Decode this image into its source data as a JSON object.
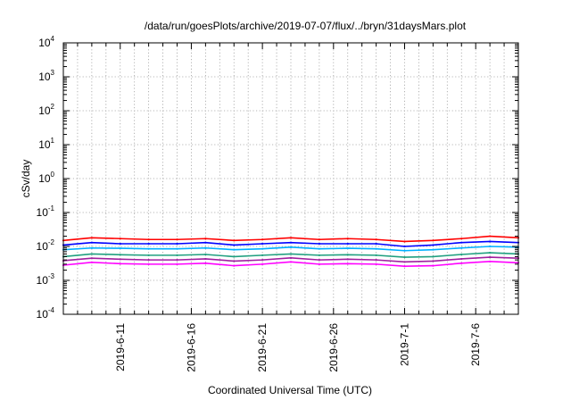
{
  "chart_data": {
    "type": "line",
    "title": "/data/run/goesPlots/archive/2019-07-07/flux/../bryn/31daysMars.plot",
    "xlabel": "Coordinated Universal Time (UTC)",
    "ylabel": "cSv/day",
    "y_scale": "log",
    "ylim": [
      0.0001,
      10000
    ],
    "y_ticks": [
      {
        "base": "10",
        "exp": "-4"
      },
      {
        "base": "10",
        "exp": "-3"
      },
      {
        "base": "10",
        "exp": "-2"
      },
      {
        "base": "10",
        "exp": "-1"
      },
      {
        "base": "10",
        "exp": "0"
      },
      {
        "base": "10",
        "exp": "1"
      },
      {
        "base": "10",
        "exp": "2"
      },
      {
        "base": "10",
        "exp": "3"
      },
      {
        "base": "10",
        "exp": "4"
      }
    ],
    "xlim": [
      "2019-06-07",
      "2019-07-09"
    ],
    "x_ticks": [
      "2019-6-11",
      "2019-6-16",
      "2019-6-21",
      "2019-6-26",
      "2019-7-1",
      "2019-7-6"
    ],
    "grid": true,
    "series": [
      {
        "color": "#ff0000",
        "x": [
          "2019-06-07",
          "2019-06-09",
          "2019-06-11",
          "2019-06-13",
          "2019-06-15",
          "2019-06-17",
          "2019-06-19",
          "2019-06-21",
          "2019-06-23",
          "2019-06-25",
          "2019-06-27",
          "2019-06-29",
          "2019-07-01",
          "2019-07-03",
          "2019-07-05",
          "2019-07-07",
          "2019-07-09"
        ],
        "values": [
          0.015,
          0.018,
          0.017,
          0.016,
          0.016,
          0.017,
          0.015,
          0.016,
          0.018,
          0.016,
          0.017,
          0.016,
          0.014,
          0.015,
          0.017,
          0.02,
          0.018
        ]
      },
      {
        "color": "#0000ff",
        "x": [
          "2019-06-07",
          "2019-06-09",
          "2019-06-11",
          "2019-06-13",
          "2019-06-15",
          "2019-06-17",
          "2019-06-19",
          "2019-06-21",
          "2019-06-23",
          "2019-06-25",
          "2019-06-27",
          "2019-06-29",
          "2019-07-01",
          "2019-07-03",
          "2019-07-05",
          "2019-07-07",
          "2019-07-09"
        ],
        "values": [
          0.011,
          0.013,
          0.012,
          0.012,
          0.012,
          0.013,
          0.011,
          0.012,
          0.013,
          0.012,
          0.012,
          0.012,
          0.01,
          0.011,
          0.013,
          0.014,
          0.013
        ]
      },
      {
        "color": "#00b0ff",
        "x": [
          "2019-06-07",
          "2019-06-09",
          "2019-06-11",
          "2019-06-13",
          "2019-06-15",
          "2019-06-17",
          "2019-06-19",
          "2019-06-21",
          "2019-06-23",
          "2019-06-25",
          "2019-06-27",
          "2019-06-29",
          "2019-07-01",
          "2019-07-03",
          "2019-07-05",
          "2019-07-07",
          "2019-07-09"
        ],
        "values": [
          0.008,
          0.009,
          0.0088,
          0.0085,
          0.0085,
          0.009,
          0.008,
          0.0085,
          0.0095,
          0.0085,
          0.0088,
          0.0085,
          0.0075,
          0.008,
          0.009,
          0.01,
          0.0095
        ]
      },
      {
        "color": "#20a080",
        "x": [
          "2019-06-07",
          "2019-06-09",
          "2019-06-11",
          "2019-06-13",
          "2019-06-15",
          "2019-06-17",
          "2019-06-19",
          "2019-06-21",
          "2019-06-23",
          "2019-06-25",
          "2019-06-27",
          "2019-06-29",
          "2019-07-01",
          "2019-07-03",
          "2019-07-05",
          "2019-07-07",
          "2019-07-09"
        ],
        "values": [
          0.005,
          0.006,
          0.0057,
          0.0055,
          0.0055,
          0.0058,
          0.005,
          0.0055,
          0.006,
          0.0055,
          0.0057,
          0.0055,
          0.0048,
          0.005,
          0.0058,
          0.0065,
          0.006
        ]
      },
      {
        "color": "#a020a0",
        "x": [
          "2019-06-07",
          "2019-06-09",
          "2019-06-11",
          "2019-06-13",
          "2019-06-15",
          "2019-06-17",
          "2019-06-19",
          "2019-06-21",
          "2019-06-23",
          "2019-06-25",
          "2019-06-27",
          "2019-06-29",
          "2019-07-01",
          "2019-07-03",
          "2019-07-05",
          "2019-07-07",
          "2019-07-09"
        ],
        "values": [
          0.0038,
          0.0045,
          0.0042,
          0.004,
          0.004,
          0.0043,
          0.0037,
          0.004,
          0.0046,
          0.004,
          0.0042,
          0.004,
          0.0035,
          0.0037,
          0.0043,
          0.0048,
          0.0045
        ]
      },
      {
        "color": "#ff00ff",
        "x": [
          "2019-06-07",
          "2019-06-09",
          "2019-06-11",
          "2019-06-13",
          "2019-06-15",
          "2019-06-17",
          "2019-06-19",
          "2019-06-21",
          "2019-06-23",
          "2019-06-25",
          "2019-06-27",
          "2019-06-29",
          "2019-07-01",
          "2019-07-03",
          "2019-07-05",
          "2019-07-07",
          "2019-07-09"
        ],
        "values": [
          0.0028,
          0.0034,
          0.0031,
          0.003,
          0.003,
          0.0032,
          0.0027,
          0.003,
          0.0035,
          0.003,
          0.0031,
          0.003,
          0.0026,
          0.0027,
          0.0032,
          0.0036,
          0.0033
        ]
      }
    ]
  }
}
